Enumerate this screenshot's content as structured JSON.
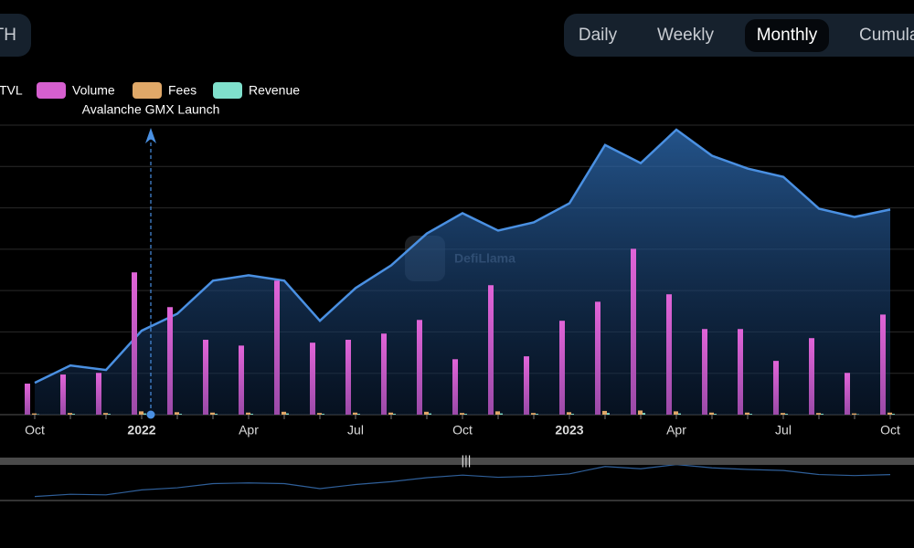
{
  "chart_data": {
    "type": "bar-line",
    "selector": "ETH",
    "periods": [
      "Daily",
      "Weekly",
      "Monthly",
      "Cumulative"
    ],
    "active_period": 2,
    "watermark": "DefiLlama",
    "annotation": {
      "text": "Avalanche GMX Launch",
      "category": 3
    },
    "categories": [
      "Oct",
      null,
      null,
      "2022",
      null,
      null,
      "Apr",
      null,
      null,
      "Jul",
      null,
      null,
      "Oct",
      null,
      null,
      "2023",
      null,
      null,
      "Apr",
      null,
      null,
      "Jul",
      null,
      null,
      "Oct"
    ],
    "bold_categories": [
      3,
      15
    ],
    "ylim": [
      0,
      7
    ],
    "yticks": [
      0,
      1,
      2,
      3,
      4,
      5,
      6,
      7
    ],
    "grid": true,
    "series": [
      {
        "name": "TVL",
        "kind": "area",
        "color": "#4a90e2",
        "values": [
          0.77,
          1.19,
          1.08,
          2.03,
          2.44,
          3.24,
          3.37,
          3.24,
          2.27,
          3.06,
          3.61,
          4.38,
          4.87,
          4.45,
          4.65,
          5.11,
          6.52,
          6.08,
          6.89,
          6.26,
          5.95,
          5.75,
          4.98,
          4.78,
          4.96
        ]
      },
      {
        "name": "Volume",
        "kind": "bar",
        "color": "#d65fcf",
        "values": [
          0.75,
          0.97,
          1.01,
          3.44,
          2.6,
          1.81,
          1.67,
          3.24,
          1.74,
          1.81,
          1.96,
          2.29,
          1.34,
          3.13,
          1.41,
          2.27,
          2.73,
          4.01,
          2.91,
          2.07,
          2.07,
          1.3,
          1.85,
          1.01,
          2.42
        ]
      },
      {
        "name": "Fees",
        "kind": "bar",
        "color": "#e0a868",
        "values": [
          0.03,
          0.04,
          0.04,
          0.08,
          0.06,
          0.05,
          0.05,
          0.07,
          0.04,
          0.05,
          0.05,
          0.07,
          0.04,
          0.08,
          0.04,
          0.06,
          0.09,
          0.1,
          0.08,
          0.05,
          0.05,
          0.04,
          0.04,
          0.03,
          0.05
        ]
      },
      {
        "name": "Revenue",
        "kind": "bar",
        "color": "#7fe0cc",
        "values": [
          0.01,
          0.02,
          0.02,
          0.03,
          0.02,
          0.02,
          0.02,
          0.03,
          0.02,
          0.02,
          0.02,
          0.03,
          0.02,
          0.03,
          0.02,
          0.02,
          0.04,
          0.04,
          0.03,
          0.02,
          0.02,
          0.02,
          0.02,
          0.01,
          0.02
        ]
      }
    ]
  }
}
